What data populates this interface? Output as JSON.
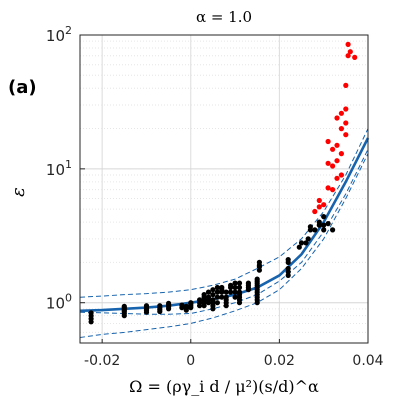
{
  "panel_label": "(a)",
  "chart_data": {
    "type": "scatter",
    "title": "α = 1.0",
    "xlabel": "Ω = (ργ_i d / μ²)(s/d)^α",
    "ylabel": "ε",
    "x_ticks": [
      "-0.02",
      "0",
      "0.02",
      "0.04"
    ],
    "x_tick_values": [
      -0.02,
      0,
      0.02,
      0.04
    ],
    "y_ticks": [
      {
        "base": "10",
        "exp": "0",
        "value": 1
      },
      {
        "base": "10",
        "exp": "1",
        "value": 10
      },
      {
        "base": "10",
        "exp": "2",
        "value": 100
      }
    ],
    "xlim": [
      -0.025,
      0.04
    ],
    "ylim": [
      0.5,
      100
    ],
    "y_scale": "log",
    "grid": true,
    "colors": {
      "black_points": "#000000",
      "red_points": "#ff0000",
      "fit": "#1763ad"
    },
    "series": [
      {
        "color": "black",
        "points": [
          [
            -0.0225,
            0.72
          ],
          [
            -0.0225,
            0.76
          ],
          [
            -0.0225,
            0.8
          ],
          [
            -0.0225,
            0.84
          ],
          [
            -0.015,
            0.8
          ],
          [
            -0.015,
            0.83
          ],
          [
            -0.015,
            0.86
          ],
          [
            -0.015,
            0.88
          ],
          [
            -0.015,
            0.9
          ],
          [
            -0.015,
            0.92
          ],
          [
            -0.015,
            0.94
          ],
          [
            -0.01,
            0.85
          ],
          [
            -0.01,
            0.88
          ],
          [
            -0.01,
            0.9
          ],
          [
            -0.01,
            0.92
          ],
          [
            -0.01,
            0.95
          ],
          [
            -0.007,
            0.86
          ],
          [
            -0.007,
            0.89
          ],
          [
            -0.007,
            0.92
          ],
          [
            -0.007,
            0.95
          ],
          [
            -0.005,
            0.9
          ],
          [
            -0.005,
            0.93
          ],
          [
            -0.005,
            0.96
          ],
          [
            -0.005,
            0.99
          ],
          [
            -0.002,
            0.92
          ],
          [
            -0.002,
            0.96
          ],
          [
            -0.001,
            0.88
          ],
          [
            -0.001,
            0.91
          ],
          [
            -0.001,
            0.94
          ],
          [
            0.0,
            0.92
          ],
          [
            0.0,
            0.95
          ],
          [
            0.0,
            0.98
          ],
          [
            0.0,
            1.0
          ],
          [
            0.002,
            0.95
          ],
          [
            0.002,
            1.0
          ],
          [
            0.002,
            1.05
          ],
          [
            0.003,
            0.95
          ],
          [
            0.003,
            1.0
          ],
          [
            0.003,
            1.05
          ],
          [
            0.003,
            1.1
          ],
          [
            0.003,
            1.15
          ],
          [
            0.004,
            1.0
          ],
          [
            0.004,
            1.05
          ],
          [
            0.004,
            1.1
          ],
          [
            0.004,
            1.2
          ],
          [
            0.005,
            0.9
          ],
          [
            0.005,
            0.95
          ],
          [
            0.005,
            1.0
          ],
          [
            0.005,
            1.05
          ],
          [
            0.005,
            1.15
          ],
          [
            0.005,
            1.25
          ],
          [
            0.006,
            1.0
          ],
          [
            0.006,
            1.1
          ],
          [
            0.006,
            1.2
          ],
          [
            0.006,
            1.3
          ],
          [
            0.007,
            1.1
          ],
          [
            0.007,
            1.2
          ],
          [
            0.007,
            1.25
          ],
          [
            0.007,
            1.3
          ],
          [
            0.008,
            0.95
          ],
          [
            0.008,
            1.0
          ],
          [
            0.008,
            1.05
          ],
          [
            0.008,
            1.1
          ],
          [
            0.008,
            1.2
          ],
          [
            0.009,
            1.2
          ],
          [
            0.009,
            1.3
          ],
          [
            0.009,
            1.35
          ],
          [
            0.01,
            1.1
          ],
          [
            0.01,
            1.2
          ],
          [
            0.01,
            1.3
          ],
          [
            0.01,
            1.4
          ],
          [
            0.011,
            1.0
          ],
          [
            0.011,
            1.05
          ],
          [
            0.011,
            1.1
          ],
          [
            0.011,
            1.15
          ],
          [
            0.011,
            1.2
          ],
          [
            0.011,
            1.3
          ],
          [
            0.011,
            1.4
          ],
          [
            0.013,
            1.25
          ],
          [
            0.013,
            1.3
          ],
          [
            0.013,
            1.35
          ],
          [
            0.013,
            1.4
          ],
          [
            0.015,
            1.0
          ],
          [
            0.015,
            1.05
          ],
          [
            0.015,
            1.1
          ],
          [
            0.015,
            1.15
          ],
          [
            0.015,
            1.2
          ],
          [
            0.015,
            1.25
          ],
          [
            0.015,
            1.3
          ],
          [
            0.015,
            1.35
          ],
          [
            0.015,
            1.4
          ],
          [
            0.015,
            1.45
          ],
          [
            0.015,
            1.5
          ],
          [
            0.0155,
            1.75
          ],
          [
            0.0155,
            1.85
          ],
          [
            0.0155,
            1.9
          ],
          [
            0.0155,
            2.0
          ],
          [
            0.022,
            1.6
          ],
          [
            0.022,
            1.7
          ],
          [
            0.022,
            1.8
          ],
          [
            0.022,
            2.0
          ],
          [
            0.022,
            2.1
          ],
          [
            0.0245,
            2.6
          ],
          [
            0.025,
            2.8
          ],
          [
            0.026,
            2.8
          ],
          [
            0.0265,
            3.0
          ],
          [
            0.027,
            3.5
          ],
          [
            0.027,
            3.7
          ],
          [
            0.028,
            3.5
          ],
          [
            0.029,
            3.8
          ],
          [
            0.029,
            4.0
          ],
          [
            0.03,
            3.5
          ],
          [
            0.03,
            3.8
          ],
          [
            0.03,
            4.4
          ],
          [
            0.032,
            3.5
          ],
          [
            0.031,
            3.9
          ]
        ]
      },
      {
        "color": "red",
        "points": [
          [
            0.028,
            4.8
          ],
          [
            0.029,
            5.2
          ],
          [
            0.03,
            5.4
          ],
          [
            0.029,
            5.8
          ],
          [
            0.031,
            7.2
          ],
          [
            0.032,
            7.0
          ],
          [
            0.033,
            8.5
          ],
          [
            0.031,
            11.0
          ],
          [
            0.032,
            10.5
          ],
          [
            0.033,
            11.5
          ],
          [
            0.034,
            9.0
          ],
          [
            0.034,
            13.0
          ],
          [
            0.033,
            15.0
          ],
          [
            0.031,
            16.0
          ],
          [
            0.032,
            14.0
          ],
          [
            0.035,
            18.0
          ],
          [
            0.034,
            20.0
          ],
          [
            0.035,
            22.0
          ],
          [
            0.033,
            24.0
          ],
          [
            0.034,
            26.0
          ],
          [
            0.035,
            28.0
          ],
          [
            0.035,
            42.0
          ],
          [
            0.0355,
            70.0
          ],
          [
            0.036,
            75.0
          ],
          [
            0.037,
            68.0
          ],
          [
            0.0355,
            85.0
          ]
        ]
      }
    ],
    "fit_curves": [
      {
        "style": "solid",
        "points": [
          [
            -0.025,
            0.87
          ],
          [
            -0.02,
            0.88
          ],
          [
            -0.015,
            0.9
          ],
          [
            -0.01,
            0.92
          ],
          [
            -0.005,
            0.95
          ],
          [
            0.0,
            1.0
          ],
          [
            0.005,
            1.06
          ],
          [
            0.01,
            1.15
          ],
          [
            0.015,
            1.3
          ],
          [
            0.02,
            1.6
          ],
          [
            0.025,
            2.3
          ],
          [
            0.03,
            4.0
          ],
          [
            0.035,
            8.0
          ],
          [
            0.04,
            17.0
          ]
        ]
      },
      {
        "style": "dashed",
        "points": [
          [
            -0.025,
            1.1
          ],
          [
            -0.02,
            1.12
          ],
          [
            -0.015,
            1.15
          ],
          [
            -0.01,
            1.17
          ],
          [
            -0.005,
            1.2
          ],
          [
            0.0,
            1.25
          ],
          [
            0.005,
            1.35
          ],
          [
            0.01,
            1.5
          ],
          [
            0.015,
            1.8
          ],
          [
            0.02,
            2.2
          ],
          [
            0.025,
            3.0
          ],
          [
            0.03,
            4.8
          ],
          [
            0.035,
            9.0
          ],
          [
            0.04,
            20.0
          ]
        ]
      },
      {
        "style": "dashed",
        "points": [
          [
            -0.025,
            0.85
          ],
          [
            -0.02,
            0.84
          ],
          [
            -0.015,
            0.83
          ],
          [
            -0.01,
            0.82
          ],
          [
            -0.005,
            0.82
          ],
          [
            0.0,
            0.83
          ],
          [
            0.005,
            0.9
          ],
          [
            0.01,
            1.0
          ],
          [
            0.015,
            1.15
          ],
          [
            0.02,
            1.45
          ],
          [
            0.025,
            2.0
          ],
          [
            0.03,
            3.4
          ],
          [
            0.035,
            6.5
          ],
          [
            0.04,
            14.0
          ]
        ]
      },
      {
        "style": "dashed",
        "points": [
          [
            -0.025,
            0.55
          ],
          [
            -0.02,
            0.58
          ],
          [
            -0.015,
            0.6
          ],
          [
            -0.01,
            0.63
          ],
          [
            -0.005,
            0.66
          ],
          [
            0.0,
            0.7
          ],
          [
            0.005,
            0.77
          ],
          [
            0.01,
            0.87
          ],
          [
            0.015,
            1.0
          ],
          [
            0.02,
            1.25
          ],
          [
            0.025,
            1.8
          ],
          [
            0.03,
            3.0
          ],
          [
            0.035,
            6.0
          ],
          [
            0.04,
            13.0
          ]
        ]
      }
    ]
  }
}
